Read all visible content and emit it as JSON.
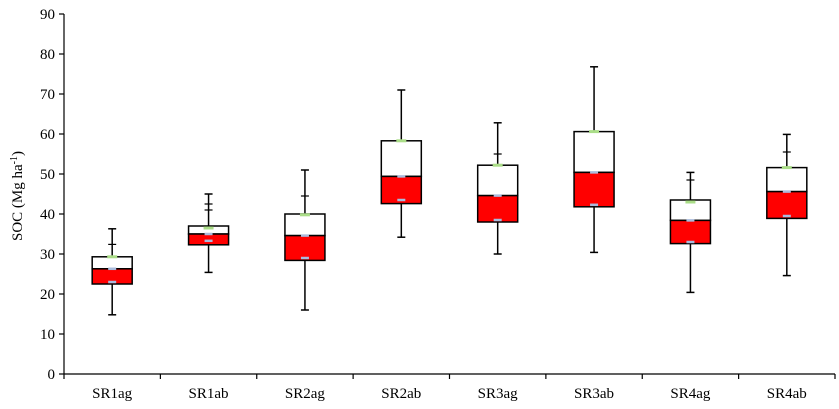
{
  "chart_data": {
    "type": "box",
    "title": "",
    "xlabel": "",
    "ylabel": "SOC (Mg ha",
    "ylabel_sup": "-1",
    "ylabel_close": ")",
    "ylim": [
      0,
      90
    ],
    "yticks": [
      0,
      10,
      20,
      30,
      40,
      50,
      60,
      70,
      80,
      90
    ],
    "grid": false,
    "legend": "none",
    "colors": {
      "lower_box": "#ff0000",
      "upper_box": "#ffffff",
      "outline": "#000000",
      "mean_marker": "#aabbdd",
      "p_marker": "#aadd88"
    },
    "categories": [
      "SR1ag",
      "SR1ab",
      "SR2ag",
      "SR2ab",
      "SR3ag",
      "SR3ab",
      "SR4ag",
      "SR4ab"
    ],
    "boxes": [
      {
        "min": 14.8,
        "q1": 22.5,
        "median": 26.3,
        "q3": 29.3,
        "max": 36.3,
        "p_lo": 23.0,
        "p_hi": 29.3,
        "ticks": [
          32.4
        ]
      },
      {
        "min": 25.4,
        "q1": 32.3,
        "median": 35.0,
        "q3": 37.0,
        "max": 45.0,
        "p_lo": 33.3,
        "p_hi": 36.5,
        "ticks": [
          41.0,
          42.5
        ]
      },
      {
        "min": 16.0,
        "q1": 28.4,
        "median": 34.6,
        "q3": 40.0,
        "max": 51.0,
        "p_lo": 29.0,
        "p_hi": 39.8,
        "ticks": [
          44.5
        ]
      },
      {
        "min": 34.2,
        "q1": 42.6,
        "median": 49.4,
        "q3": 58.3,
        "max": 71.0,
        "p_lo": 43.5,
        "p_hi": 58.3,
        "ticks": [
          53.0
        ]
      },
      {
        "min": 30.0,
        "q1": 38.0,
        "median": 44.6,
        "q3": 52.2,
        "max": 62.8,
        "p_lo": 38.5,
        "p_hi": 52.2,
        "ticks": [
          48.0,
          55.0
        ]
      },
      {
        "min": 30.4,
        "q1": 41.8,
        "median": 50.4,
        "q3": 60.6,
        "max": 76.8,
        "p_lo": 42.3,
        "p_hi": 60.6,
        "ticks": [
          52.0
        ]
      },
      {
        "min": 20.4,
        "q1": 32.6,
        "median": 38.4,
        "q3": 43.5,
        "max": 50.4,
        "p_lo": 33.0,
        "p_hi": 43.0,
        "ticks": [
          48.5
        ]
      },
      {
        "min": 24.6,
        "q1": 38.9,
        "median": 45.6,
        "q3": 51.6,
        "max": 59.9,
        "p_lo": 39.5,
        "p_hi": 51.6,
        "ticks": [
          55.5
        ]
      }
    ]
  }
}
